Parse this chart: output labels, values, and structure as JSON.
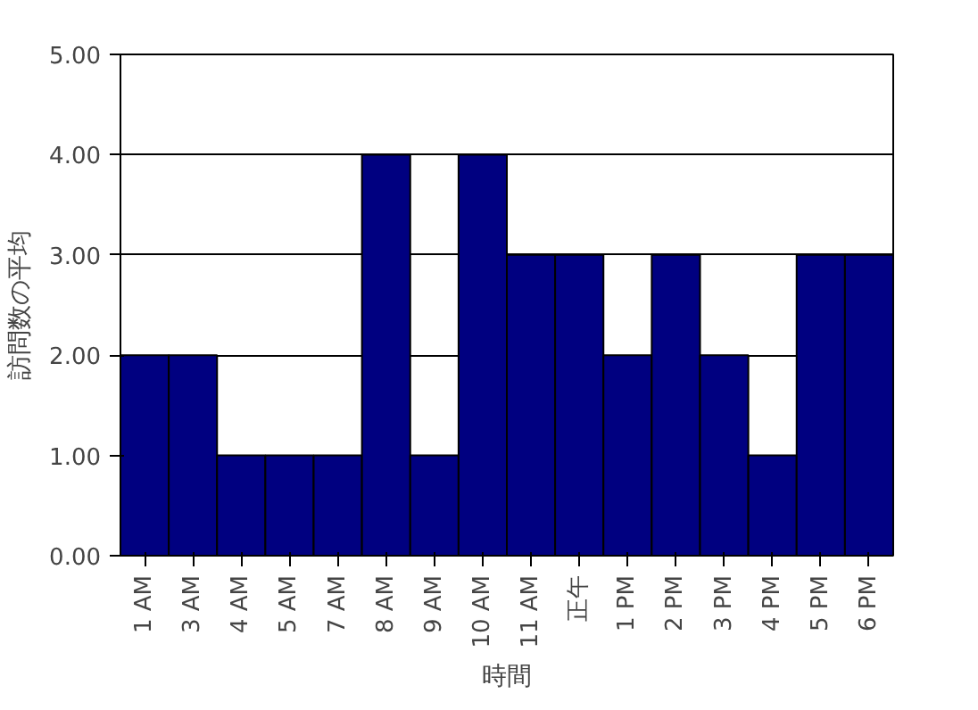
{
  "chart_data": {
    "type": "bar",
    "xlabel": "時間",
    "ylabel": "訪問数の平均",
    "categories": [
      "1 AM",
      "3 AM",
      "4 AM",
      "5 AM",
      "7 AM",
      "8 AM",
      "9 AM",
      "10 AM",
      "11 AM",
      "正午",
      "1 PM",
      "2 PM",
      "3 PM",
      "4 PM",
      "5 PM",
      "6 PM"
    ],
    "values": [
      2,
      2,
      1,
      1,
      1,
      4,
      1,
      4,
      3,
      3,
      2,
      3,
      2,
      1,
      3,
      3
    ],
    "color": "#000080",
    "ylim": [
      0,
      5
    ],
    "yticks": [
      {
        "value": 0,
        "label": "0.00"
      },
      {
        "value": 1,
        "label": "1.00"
      },
      {
        "value": 2,
        "label": "2.00"
      },
      {
        "value": 3,
        "label": "3.00"
      },
      {
        "value": 4,
        "label": "4.00"
      },
      {
        "value": 5,
        "label": "5.00"
      }
    ],
    "grid": "y"
  }
}
